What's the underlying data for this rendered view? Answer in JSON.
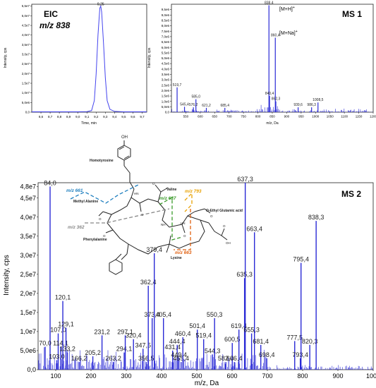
{
  "chart_data": [
    {
      "type": "line",
      "title": "EIC",
      "subtitle": "m/z 838",
      "xlabel": "Time, min",
      "ylabel": "Intensity, cps",
      "xlim": [
        8.5,
        9.75
      ],
      "ylim": [
        0,
        5.6
      ],
      "xticks": [
        "8,6",
        "8,7",
        "8,8",
        "8,9",
        "9,0",
        "9,1",
        "9,2",
        "9,3",
        "9,4",
        "9,5",
        "9,6",
        "9,7"
      ],
      "yticks": [
        "0,0",
        "5,0e6",
        "1,0e7",
        "1,5e7",
        "2,0e7",
        "2,5e7",
        "3,0e7",
        "3,5e7",
        "4,0e7",
        "4,5e7",
        "5,0e7",
        "5,5e7"
      ],
      "peak_label": "9,25",
      "series": [
        {
          "x": [
            8.5,
            8.7,
            8.9,
            9.0,
            9.1,
            9.15,
            9.18,
            9.2,
            9.22,
            9.24,
            9.25,
            9.26,
            9.28,
            9.3,
            9.32,
            9.35,
            9.4,
            9.5,
            9.6,
            9.75
          ],
          "y": [
            0.02,
            0.02,
            0.02,
            0.02,
            0.03,
            0.08,
            0.6,
            2.0,
            4.0,
            5.4,
            5.5,
            5.2,
            3.6,
            1.8,
            0.6,
            0.15,
            0.04,
            0.02,
            0.02,
            0.02
          ]
        }
      ]
    },
    {
      "type": "bar",
      "title": "MS 1",
      "xlabel": "m/z, Da",
      "ylabel": "Intensity, cps",
      "xlim": [
        500,
        1200
      ],
      "ylim": [
        0,
        10
      ],
      "xticks": [
        "550",
        "600",
        "650",
        "700",
        "750",
        "800",
        "850",
        "900",
        "950",
        "1000",
        "1050",
        "1100",
        "1150",
        "1200"
      ],
      "yticks": [
        "0,0",
        "5,0e5",
        "1,0e6",
        "1,5e6",
        "2,0e6",
        "2,5e6",
        "3,0e6",
        "3,5e6",
        "4,0e6",
        "4,5e6",
        "5,0e6",
        "5,5e6",
        "6,0e6",
        "6,5e6",
        "7,0e6",
        "7,5e6",
        "8,0e6",
        "8,5e6",
        "9,0e6",
        "9,5e6"
      ],
      "peaks": [
        {
          "mz": 519.7,
          "label": "519,7",
          "y": 2.3
        },
        {
          "mz": 545.4,
          "label": "545,4",
          "y": 0.5
        },
        {
          "mz": 585.0,
          "label": "585,0",
          "y": 1.2
        },
        {
          "mz": 576.2,
          "label": "576,2",
          "y": 0.45
        },
        {
          "mz": 621.2,
          "label": "621,2",
          "y": 0.4
        },
        {
          "mz": 685.4,
          "label": "685,4",
          "y": 0.4
        },
        {
          "mz": 838.4,
          "label": "838,4",
          "y": 9.9
        },
        {
          "mz": 860.4,
          "label": "860,4",
          "y": 6.9
        },
        {
          "mz": 840.4,
          "label": "840,4",
          "y": 1.5
        },
        {
          "mz": 862.3,
          "label": "862,3",
          "y": 1.0
        },
        {
          "mz": 939.6,
          "label": "939,6",
          "y": 0.45
        },
        {
          "mz": 986.3,
          "label": "986,3",
          "y": 0.45
        },
        {
          "mz": 1008.5,
          "label": "1008,5",
          "y": 0.9
        }
      ],
      "annotations": [
        "[M+H]",
        "[M+Na]"
      ]
    },
    {
      "type": "bar",
      "title": "MS 2",
      "xlabel": "m/z, Da",
      "ylabel": "Intensity, cps",
      "xlim": [
        50,
        1000
      ],
      "ylim": [
        0,
        4.9
      ],
      "xticks": [
        "100",
        "200",
        "300",
        "400",
        "500",
        "600",
        "700",
        "800",
        "900",
        "1000"
      ],
      "yticks": [
        "0,0",
        "5,0e6",
        "1,0e7",
        "1,5e7",
        "2,0e7",
        "2,5e7",
        "3,0e7",
        "3,5e7",
        "4,0e7",
        "4,5e7",
        "4,8e7"
      ],
      "peaks": [
        {
          "mz": 84.0,
          "label": "84,0",
          "y": 4.8
        },
        {
          "mz": 70.0,
          "label": "70,0",
          "y": 0.6
        },
        {
          "mz": 107.0,
          "label": "107,0",
          "y": 0.95
        },
        {
          "mz": 103.0,
          "label": "103,0",
          "y": 0.25
        },
        {
          "mz": 114.1,
          "label": "114,1",
          "y": 0.6
        },
        {
          "mz": 120.1,
          "label": "120,1",
          "y": 1.8
        },
        {
          "mz": 129.1,
          "label": "129,1",
          "y": 1.1
        },
        {
          "mz": 133.2,
          "label": "133,2",
          "y": 0.45
        },
        {
          "mz": 166.2,
          "label": "166,2",
          "y": 0.2
        },
        {
          "mz": 205.2,
          "label": "205,2",
          "y": 0.35
        },
        {
          "mz": 231.2,
          "label": "231,2",
          "y": 0.9
        },
        {
          "mz": 263.2,
          "label": "263,2",
          "y": 0.2
        },
        {
          "mz": 294.1,
          "label": "294,1",
          "y": 0.45
        },
        {
          "mz": 297.1,
          "label": "297,1",
          "y": 0.9
        },
        {
          "mz": 320.4,
          "label": "320,4",
          "y": 0.8
        },
        {
          "mz": 347.5,
          "label": "347,5",
          "y": 0.55
        },
        {
          "mz": 356.5,
          "label": "356,5",
          "y": 0.2
        },
        {
          "mz": 362.4,
          "label": "362,4",
          "y": 2.2
        },
        {
          "mz": 373.4,
          "label": "373,4",
          "y": 1.35
        },
        {
          "mz": 379.4,
          "label": "379,4",
          "y": 3.05
        },
        {
          "mz": 405.4,
          "label": "405,4",
          "y": 1.35
        },
        {
          "mz": 431.4,
          "label": "431,4",
          "y": 0.5
        },
        {
          "mz": 444.4,
          "label": "444,4",
          "y": 0.65
        },
        {
          "mz": 449.4,
          "label": "449,4",
          "y": 0.3
        },
        {
          "mz": 455.4,
          "label": "455,4",
          "y": 0.2
        },
        {
          "mz": 460.4,
          "label": "460,4",
          "y": 0.85
        },
        {
          "mz": 501.4,
          "label": "501,4",
          "y": 1.05
        },
        {
          "mz": 519.4,
          "label": "519,4",
          "y": 0.8
        },
        {
          "mz": 544.3,
          "label": "544,3",
          "y": 0.4
        },
        {
          "mz": 550.3,
          "label": "550,3",
          "y": 1.35
        },
        {
          "mz": 582.4,
          "label": "582,4",
          "y": 0.2
        },
        {
          "mz": 600.5,
          "label": "600,5",
          "y": 0.7
        },
        {
          "mz": 606.4,
          "label": "606,4",
          "y": 0.2
        },
        {
          "mz": 619.4,
          "label": "619,4",
          "y": 1.05
        },
        {
          "mz": 635.3,
          "label": "635,3",
          "y": 2.4
        },
        {
          "mz": 637.3,
          "label": "637,3",
          "y": 4.9
        },
        {
          "mz": 655.3,
          "label": "655,3",
          "y": 0.95
        },
        {
          "mz": 663.4,
          "label": "663,4",
          "y": 3.6
        },
        {
          "mz": 681.4,
          "label": "681,4",
          "y": 0.65
        },
        {
          "mz": 698.4,
          "label": "698,4",
          "y": 0.3
        },
        {
          "mz": 777.5,
          "label": "777,5",
          "y": 0.75
        },
        {
          "mz": 793.4,
          "label": "793,4",
          "y": 0.3
        },
        {
          "mz": 795.4,
          "label": "795,4",
          "y": 2.8
        },
        {
          "mz": 820.3,
          "label": "820,3",
          "y": 0.65
        },
        {
          "mz": 838.3,
          "label": "838,3",
          "y": 3.9
        }
      ]
    }
  ],
  "structure": {
    "residues": [
      "Homotyrosine",
      "Valine",
      "Methyl Alanine",
      "O-Ethyl Glutamic acid",
      "Phenylalanine",
      "Lysine"
    ],
    "atoms": [
      "OH",
      "HN",
      "NH",
      "HN",
      "O",
      "O",
      "O",
      "O",
      "O",
      "O",
      "O",
      "OH"
    ],
    "fragments": [
      "m/z 661",
      "m/z 637",
      "m/z 793",
      "m/z 362",
      "m/z 663"
    ]
  },
  "colors": {
    "peak": "#2a2ad6",
    "frag661": "#1f7fbf",
    "frag637": "#3a9a2a",
    "frag793": "#e8a000",
    "frag362": "#888888",
    "frag663": "#e06010"
  }
}
